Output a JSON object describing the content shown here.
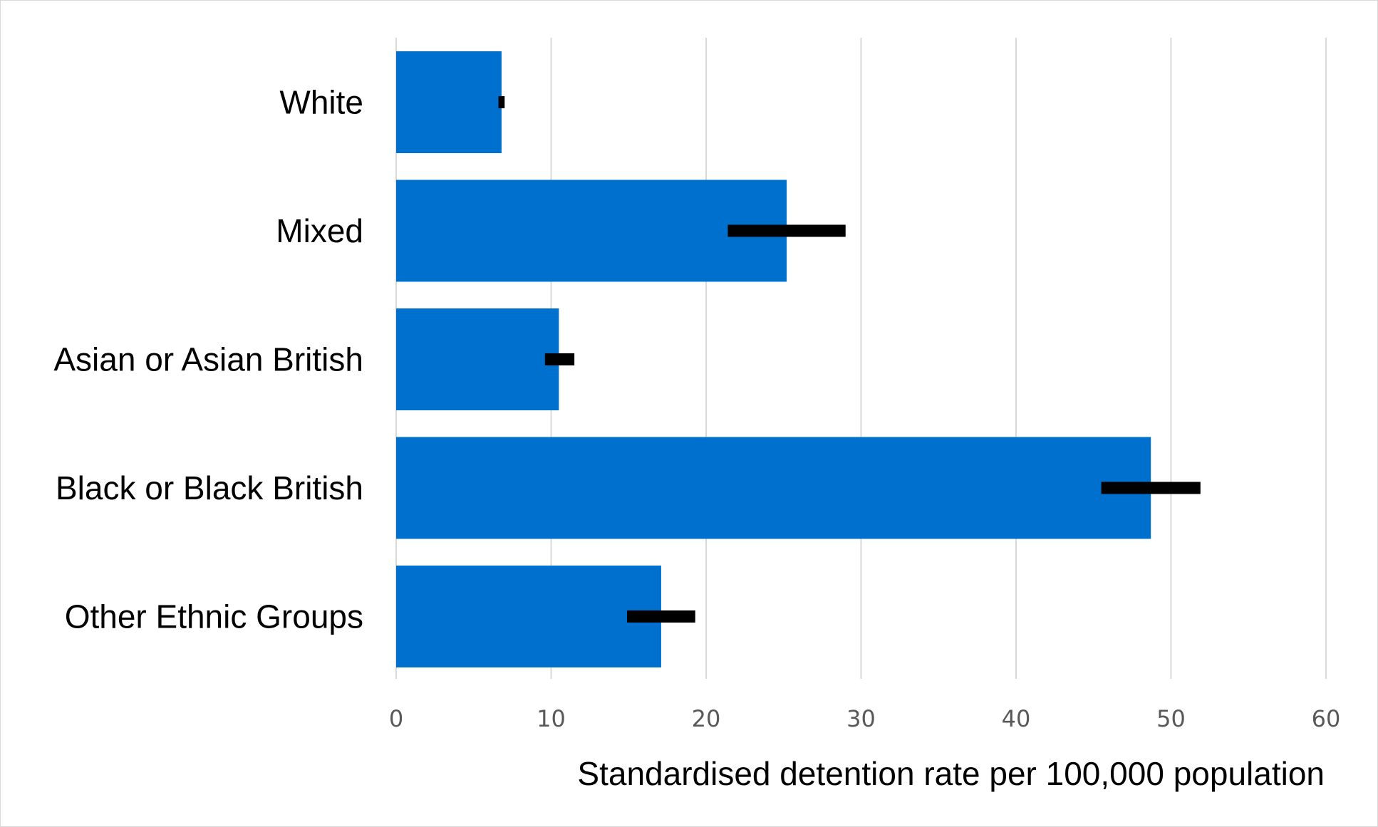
{
  "chart_data": {
    "type": "bar",
    "orientation": "horizontal",
    "categories": [
      "White",
      "Mixed",
      "Asian or Asian British",
      "Black or Black British",
      "Other Ethnic Groups"
    ],
    "values": [
      6.8,
      25.2,
      10.5,
      48.7,
      17.1
    ],
    "error_ranges": [
      [
        6.6,
        7.0
      ],
      [
        21.4,
        29.0
      ],
      [
        9.6,
        11.5
      ],
      [
        45.5,
        51.9
      ],
      [
        14.9,
        19.3
      ]
    ],
    "xlabel": "Standardised detention rate per 100,000 population",
    "ylabel": "",
    "title": "",
    "xlim": [
      0,
      60
    ],
    "xticks": [
      0,
      10,
      20,
      30,
      40,
      50,
      60
    ],
    "grid": "vertical",
    "legend": "none",
    "colors": {
      "bar": "#0070ce",
      "error_bar": "#000000",
      "gridline": "#d9d9d9"
    }
  }
}
